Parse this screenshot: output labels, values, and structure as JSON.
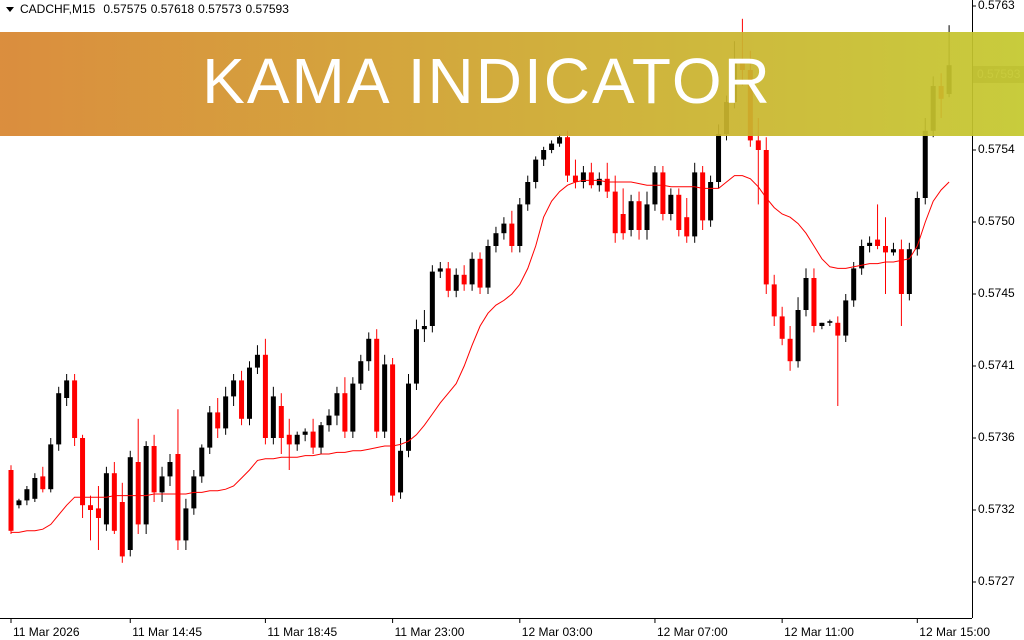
{
  "chart_data": {
    "type": "candlestick",
    "symbol": "CADCHF,M15",
    "banner": "KAMA INDICATOR",
    "up_color": "#000000",
    "down_color": "#ff0000",
    "ylim": [
      0.572475,
      0.5763375
    ],
    "yticks": [
      0.5763,
      0.5754,
      {
        "value": 0.57495,
        "label": "0.5750"
      },
      0.5745,
      {
        "value": 0.57405,
        "label": "0.5741"
      },
      0.5736,
      {
        "value": 0.57315,
        "label": "0.5732"
      },
      0.5727
    ],
    "xticks": [
      {
        "value": 0,
        "label": "11 Mar 2026"
      },
      {
        "value": 15,
        "label": "11 Mar 14:45"
      },
      {
        "value": 32,
        "label": "11 Mar 18:45"
      },
      {
        "value": 48,
        "label": "11 Mar 23:00"
      },
      {
        "value": 64,
        "label": "12 Mar 03:00"
      },
      {
        "value": 81,
        "label": "12 Mar 07:00"
      },
      {
        "value": 97,
        "label": "12 Mar 11:00"
      },
      {
        "value": 114,
        "label": "12 Mar 15:00"
      }
    ],
    "open": [
      0.5734,
      0.57318,
      0.57321,
      0.57322,
      0.57336,
      0.57328,
      0.57356,
      0.57385,
      0.57396,
      0.5736,
      0.57318,
      0.57316,
      0.57306,
      0.57338,
      0.5732,
      0.5729,
      0.57345,
      0.57306,
      0.57355,
      0.57326,
      0.57336,
      0.5735,
      0.57296,
      0.57316,
      0.57336,
      0.57354,
      0.57376,
      0.57366,
      0.57386,
      0.57396,
      0.57372,
      0.57404,
      0.57412,
      0.5736,
      0.5738,
      0.57362,
      0.57356,
      0.57362,
      0.57364,
      0.57354,
      0.57368,
      0.57374,
      0.57388,
      0.57364,
      0.57394,
      0.57408,
      0.57422,
      0.57364,
      0.57406,
      0.57326,
      0.57352,
      0.57394,
      0.57428,
      0.5743,
      0.57464,
      0.57466,
      0.57452,
      0.57462,
      0.57456,
      0.57472,
      0.57454,
      0.5748,
      0.57488,
      0.57494,
      0.5748,
      0.57506,
      0.5752,
      0.57534,
      0.5754,
      0.57544,
      0.57548,
      0.57524,
      0.5752,
      0.57526,
      0.57518,
      0.57522,
      0.57514,
      0.575,
      0.5749,
      0.57508,
      0.5749,
      0.57506,
      0.57526,
      0.575,
      0.57512,
      0.57498,
      0.57486,
      0.57526,
      0.57496,
      0.5752,
      0.5755,
      0.5757,
      0.57596,
      0.5759,
      0.57546,
      0.5754,
      0.57456,
      0.57436,
      0.57422,
      0.57408,
      0.5744,
      0.5746,
      0.5743,
      0.57432,
      0.57432,
      0.57424,
      0.57446,
      0.57466,
      0.5748,
      0.57484,
      0.5748,
      0.57476,
      0.57478,
      0.5745,
      0.57478,
      0.5751,
      0.57552,
      0.5758,
      0.57575
    ],
    "high": [
      0.57343,
      0.57322,
      0.5733,
      0.57338,
      0.57342,
      0.5736,
      0.57392,
      0.574,
      0.574,
      0.57362,
      0.57324,
      0.5733,
      0.57342,
      0.57345,
      0.57332,
      0.57352,
      0.57372,
      0.57358,
      0.57362,
      0.57342,
      0.5735,
      0.57378,
      0.57322,
      0.5734,
      0.57356,
      0.5738,
      0.57385,
      0.57392,
      0.574,
      0.57402,
      0.57408,
      0.57418,
      0.57422,
      0.57392,
      0.57388,
      0.57372,
      0.57364,
      0.57366,
      0.57372,
      0.5737,
      0.57378,
      0.57392,
      0.57398,
      0.57398,
      0.57412,
      0.57426,
      0.57428,
      0.57412,
      0.5741,
      0.5736,
      0.574,
      0.57434,
      0.5744,
      0.57468,
      0.5747,
      0.5747,
      0.57466,
      0.57468,
      0.57476,
      0.57476,
      0.57484,
      0.57492,
      0.57498,
      0.57502,
      0.5751,
      0.57524,
      0.57536,
      0.57542,
      0.57546,
      0.5755,
      0.57552,
      0.57534,
      0.5753,
      0.57532,
      0.57526,
      0.57532,
      0.57524,
      0.57516,
      0.57512,
      0.57514,
      0.57514,
      0.5753,
      0.5753,
      0.57516,
      0.57516,
      0.5751,
      0.57532,
      0.5753,
      0.57524,
      0.57556,
      0.57574,
      0.57608,
      0.57622,
      0.57602,
      0.5756,
      0.57548,
      0.57462,
      0.57442,
      0.5743,
      0.57448,
      0.57466,
      0.57466,
      0.57432,
      0.57434,
      0.57436,
      0.5745,
      0.5747,
      0.57484,
      0.57486,
      0.57506,
      0.57498,
      0.57482,
      0.57484,
      0.57482,
      0.57514,
      0.5756,
      0.57586,
      0.57588,
      0.57618
    ],
    "low": [
      0.573,
      0.57316,
      0.57318,
      0.5732,
      0.57326,
      0.57326,
      0.57352,
      0.5738,
      0.57355,
      0.5731,
      0.57296,
      0.5729,
      0.57302,
      0.573,
      0.57282,
      0.57286,
      0.573,
      0.573,
      0.5732,
      0.5732,
      0.5733,
      0.5729,
      0.5729,
      0.57312,
      0.57332,
      0.5735,
      0.5736,
      0.57362,
      0.5738,
      0.57368,
      0.57368,
      0.574,
      0.57356,
      0.57356,
      0.5735,
      0.5734,
      0.57352,
      0.57358,
      0.5735,
      0.5735,
      0.57364,
      0.57368,
      0.5736,
      0.5736,
      0.5739,
      0.57402,
      0.5736,
      0.5736,
      0.5732,
      0.57322,
      0.57348,
      0.5739,
      0.5742,
      0.57426,
      0.5746,
      0.57448,
      0.57448,
      0.57452,
      0.57452,
      0.5745,
      0.5745,
      0.57476,
      0.57484,
      0.57476,
      0.57476,
      0.57502,
      0.57516,
      0.5753,
      0.57538,
      0.57542,
      0.5752,
      0.57516,
      0.57516,
      0.57516,
      0.57514,
      0.5751,
      0.57482,
      0.57484,
      0.57486,
      0.57484,
      0.57484,
      0.57502,
      0.57496,
      0.57496,
      0.57486,
      0.57482,
      0.57482,
      0.5749,
      0.57492,
      0.57516,
      0.57546,
      0.57566,
      0.5758,
      0.57542,
      0.57506,
      0.5745,
      0.5743,
      0.57418,
      0.57402,
      0.57404,
      0.57436,
      0.57426,
      0.57428,
      0.5743,
      0.5738,
      0.5742,
      0.57442,
      0.57462,
      0.57476,
      0.57478,
      0.5745,
      0.57474,
      0.5743,
      0.57446,
      0.57474,
      0.57506,
      0.57548,
      0.5756,
      0.57573
    ],
    "close": [
      0.57302,
      0.57321,
      0.57328,
      0.57335,
      0.57328,
      0.57356,
      0.57388,
      0.57396,
      0.5736,
      0.57318,
      0.57315,
      0.5731,
      0.57338,
      0.57302,
      0.57286,
      0.57348,
      0.57306,
      0.57355,
      0.57326,
      0.57336,
      0.57345,
      0.57296,
      0.57316,
      0.57336,
      0.57354,
      0.57376,
      0.57366,
      0.57386,
      0.57396,
      0.57372,
      0.57404,
      0.57412,
      0.5736,
      0.57386,
      0.5736,
      0.57356,
      0.57362,
      0.57364,
      0.57354,
      0.57368,
      0.57374,
      0.57388,
      0.57364,
      0.57394,
      0.57408,
      0.57422,
      0.57364,
      0.57406,
      0.57324,
      0.57352,
      0.57394,
      0.57428,
      0.5743,
      0.57464,
      0.57466,
      0.57452,
      0.57462,
      0.57456,
      0.57472,
      0.57454,
      0.5748,
      0.57488,
      0.57494,
      0.5748,
      0.57506,
      0.5752,
      0.57534,
      0.5754,
      0.57544,
      0.57548,
      0.57524,
      0.5752,
      0.57526,
      0.57518,
      0.57522,
      0.57514,
      0.57488,
      0.57488,
      0.57508,
      0.5749,
      0.57506,
      0.57526,
      0.575,
      0.57512,
      0.5749,
      0.57486,
      0.57526,
      0.57496,
      0.5752,
      0.5755,
      0.5757,
      0.57596,
      0.5759,
      0.57546,
      0.5754,
      0.57456,
      0.57436,
      0.57422,
      0.57408,
      0.5744,
      0.5746,
      0.5743,
      0.57432,
      0.57433,
      0.57424,
      0.57446,
      0.57466,
      0.5748,
      0.57482,
      0.5748,
      0.57476,
      0.57478,
      0.5745,
      0.57478,
      0.5751,
      0.57552,
      0.5758,
      0.57572,
      0.57593
    ],
    "line": {
      "color": "#ff0000",
      "values": [
        0.57301,
        0.57301,
        0.57302,
        0.57302,
        0.57303,
        0.57306,
        0.57312,
        0.57318,
        0.57323,
        0.57323,
        0.57323,
        0.57323,
        0.57323,
        0.57324,
        0.57324,
        0.57324,
        0.57324,
        0.57324,
        0.57325,
        0.57325,
        0.57325,
        0.57325,
        0.57325,
        0.57326,
        0.57326,
        0.57327,
        0.57327,
        0.57328,
        0.5733,
        0.57335,
        0.5734,
        0.57346,
        0.57347,
        0.57347,
        0.57348,
        0.57348,
        0.57348,
        0.57349,
        0.57349,
        0.5735,
        0.5735,
        0.57351,
        0.57351,
        0.57352,
        0.57352,
        0.57353,
        0.57354,
        0.57355,
        0.57355,
        0.57356,
        0.57358,
        0.57362,
        0.57368,
        0.57375,
        0.57382,
        0.57388,
        0.57394,
        0.57405,
        0.57418,
        0.5743,
        0.57438,
        0.57443,
        0.57446,
        0.5745,
        0.57456,
        0.57466,
        0.5748,
        0.57498,
        0.57508,
        0.57514,
        0.57518,
        0.5752,
        0.57521,
        0.57521,
        0.57521,
        0.5752,
        0.5752,
        0.5752,
        0.5752,
        0.57519,
        0.57518,
        0.57518,
        0.57518,
        0.57517,
        0.57517,
        0.57517,
        0.57517,
        0.57516,
        0.57516,
        0.57516,
        0.5752,
        0.57524,
        0.57524,
        0.57522,
        0.57517,
        0.5751,
        0.57504,
        0.575,
        0.57498,
        0.57494,
        0.57488,
        0.5748,
        0.57472,
        0.57467,
        0.57466,
        0.57466,
        0.57467,
        0.57468,
        0.57469,
        0.57469,
        0.5747,
        0.5747,
        0.57471,
        0.57472,
        0.5748,
        0.57495,
        0.57508,
        0.57515,
        0.5752
      ]
    }
  }
}
